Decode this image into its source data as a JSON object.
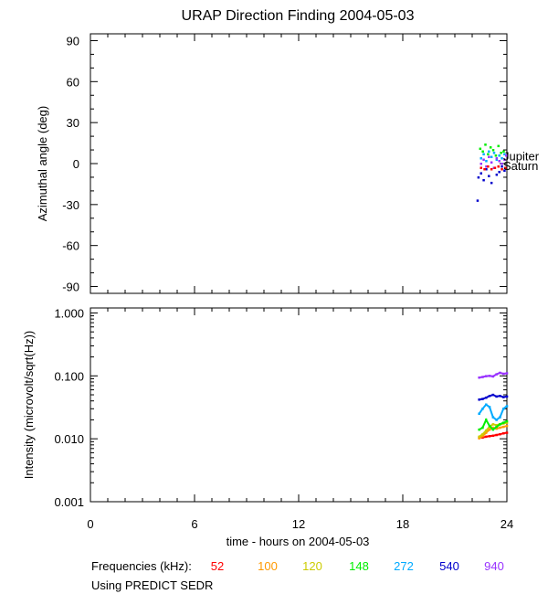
{
  "title": "URAP Direction Finding  2004-05-03",
  "footer": {
    "freq_label": "Frequencies (kHz):",
    "source_note": "Using PREDICT SEDR"
  },
  "frequencies": [
    {
      "label": "52",
      "color": "#ff0000"
    },
    {
      "label": "100",
      "color": "#ff9900"
    },
    {
      "label": "120",
      "color": "#cccc00"
    },
    {
      "label": "148",
      "color": "#00ee00"
    },
    {
      "label": "272",
      "color": "#00aaff"
    },
    {
      "label": "540",
      "color": "#0000cc"
    },
    {
      "label": "940",
      "color": "#9933ff"
    }
  ],
  "chart_data": [
    {
      "type": "scatter",
      "title": "URAP Direction Finding  2004-05-03",
      "ylabel": "Azimuthal angle (deg)",
      "xlim": [
        0,
        24
      ],
      "ylim": [
        -95,
        95
      ],
      "yticks": [
        90,
        60,
        30,
        0,
        -30,
        -60,
        -90
      ],
      "ytick_labels": [
        "90",
        "60",
        "30",
        "0",
        "-30",
        "-60",
        "-90"
      ],
      "reference_lines": [
        {
          "name": "Jupiter",
          "y": 5
        },
        {
          "name": "Saturn",
          "y": -2
        }
      ],
      "series": [
        {
          "freq": "148",
          "color": "#00ee00",
          "x": [
            22.45,
            22.6,
            22.75,
            22.9,
            23.05,
            23.2,
            23.35,
            23.5,
            23.65,
            23.8
          ],
          "y": [
            11,
            9,
            14,
            7,
            12,
            10,
            6,
            13,
            8,
            9
          ]
        },
        {
          "freq": "272",
          "color": "#00aaff",
          "x": [
            22.5,
            22.65,
            22.8,
            22.95,
            23.1,
            23.25,
            23.4,
            23.55,
            23.7,
            23.85
          ],
          "y": [
            4,
            7,
            2,
            9,
            5,
            8,
            3,
            6,
            4,
            7
          ]
        },
        {
          "freq": "540",
          "color": "#0000cc",
          "x": [
            22.3,
            22.35,
            22.5,
            22.65,
            22.8,
            22.95,
            23.1,
            23.25,
            23.4,
            23.55,
            23.7,
            23.85
          ],
          "y": [
            -27,
            -10,
            -7,
            -12,
            -4,
            -9,
            -14,
            -3,
            -8,
            -6,
            -2,
            -5
          ]
        },
        {
          "freq": "940",
          "color": "#9933ff",
          "x": [
            22.5,
            22.65,
            22.8,
            22.95,
            23.1,
            23.25,
            23.4,
            23.55,
            23.7,
            23.85,
            23.95
          ],
          "y": [
            0,
            3,
            -2,
            5,
            1,
            -3,
            4,
            2,
            0,
            3,
            6
          ]
        },
        {
          "freq": "52",
          "color": "#ff0000",
          "x": [
            22.5,
            22.7,
            22.9,
            23.1,
            23.3,
            23.5,
            23.7,
            23.9
          ],
          "y": [
            -3,
            -4,
            -2,
            -4,
            -3,
            -2,
            -4,
            -3
          ]
        }
      ]
    },
    {
      "type": "line",
      "xlabel": "time - hours on 2004-05-03",
      "ylabel": "Intensity (microvolt/sqrt(Hz))",
      "xlim": [
        0,
        24
      ],
      "xticks": [
        0,
        6,
        12,
        18,
        24
      ],
      "xtick_labels": [
        "0",
        "6",
        "12",
        "18",
        "24"
      ],
      "yscale": "log",
      "ylim": [
        0.001,
        1.2
      ],
      "yticks": [
        1.0,
        0.1,
        0.01,
        0.001
      ],
      "ytick_labels": [
        "1.000",
        "0.100",
        "0.010",
        "0.001"
      ],
      "series": [
        {
          "freq": "52",
          "color": "#ff0000",
          "x": [
            22.4,
            22.6,
            22.8,
            23.0,
            23.2,
            23.4,
            23.6,
            23.8,
            24.0
          ],
          "y": [
            0.0105,
            0.0105,
            0.0108,
            0.011,
            0.0112,
            0.0115,
            0.0118,
            0.0122,
            0.0125
          ]
        },
        {
          "freq": "100",
          "color": "#ff9900",
          "x": [
            22.4,
            22.6,
            22.8,
            23.0,
            23.2,
            23.4,
            23.6,
            23.8,
            24.0
          ],
          "y": [
            0.0102,
            0.011,
            0.0125,
            0.014,
            0.015,
            0.0145,
            0.015,
            0.0155,
            0.016
          ]
        },
        {
          "freq": "120",
          "color": "#cccc00",
          "x": [
            22.4,
            22.6,
            22.8,
            23.0,
            23.2,
            23.4,
            23.6,
            23.8,
            24.0
          ],
          "y": [
            0.0108,
            0.0118,
            0.0135,
            0.0155,
            0.017,
            0.0165,
            0.017,
            0.0175,
            0.018
          ]
        },
        {
          "freq": "148",
          "color": "#00ee00",
          "x": [
            22.4,
            22.6,
            22.8,
            23.0,
            23.2,
            23.4,
            23.6,
            23.8,
            24.0
          ],
          "y": [
            0.014,
            0.015,
            0.02,
            0.016,
            0.014,
            0.0155,
            0.017,
            0.018,
            0.019
          ]
        },
        {
          "freq": "272",
          "color": "#00aaff",
          "x": [
            22.4,
            22.6,
            22.8,
            23.0,
            23.2,
            23.4,
            23.6,
            23.8,
            24.0
          ],
          "y": [
            0.025,
            0.03,
            0.035,
            0.032,
            0.022,
            0.02,
            0.022,
            0.03,
            0.033
          ]
        },
        {
          "freq": "540",
          "color": "#0000cc",
          "x": [
            22.4,
            22.6,
            22.8,
            23.0,
            23.2,
            23.4,
            23.6,
            23.8,
            24.0
          ],
          "y": [
            0.042,
            0.043,
            0.045,
            0.048,
            0.05,
            0.047,
            0.048,
            0.046,
            0.047
          ]
        },
        {
          "freq": "940",
          "color": "#9933ff",
          "x": [
            22.4,
            22.6,
            22.8,
            23.0,
            23.2,
            23.4,
            23.6,
            23.8,
            24.0
          ],
          "y": [
            0.094,
            0.096,
            0.099,
            0.1,
            0.098,
            0.106,
            0.112,
            0.108,
            0.11
          ]
        }
      ]
    }
  ]
}
